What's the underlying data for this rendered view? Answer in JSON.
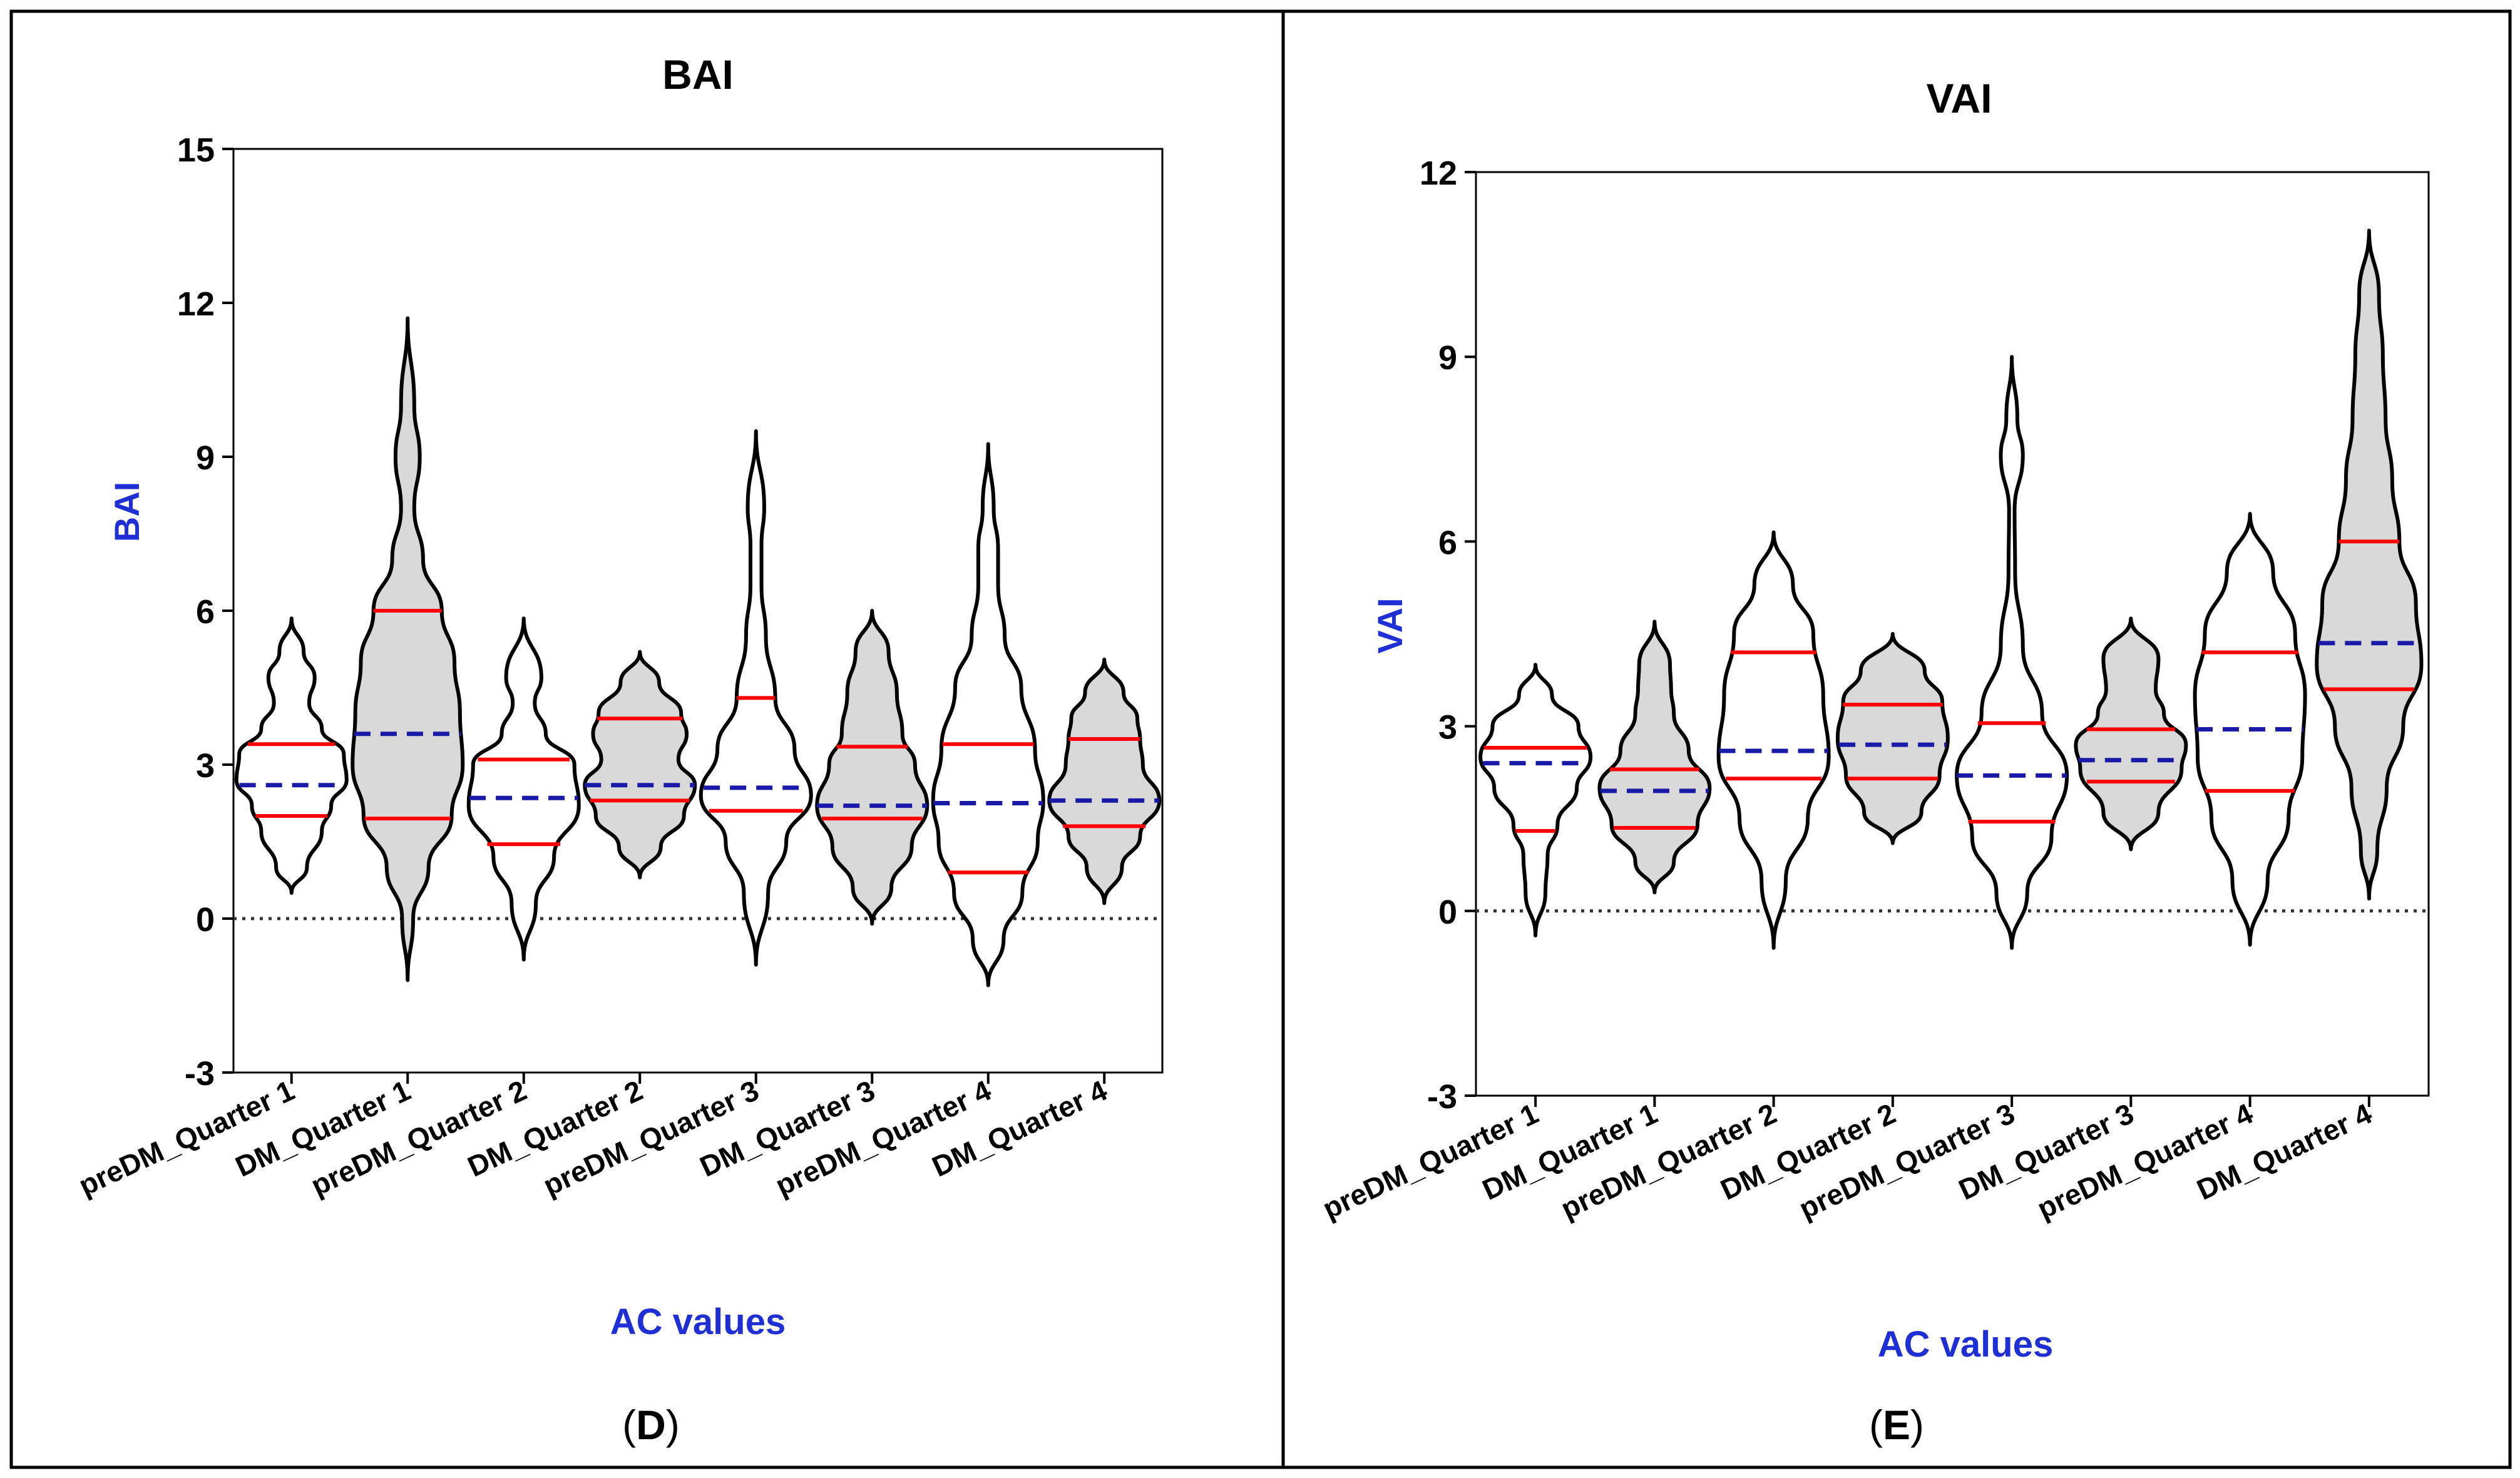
{
  "figure": {
    "panels": [
      {
        "label_letter": "D"
      },
      {
        "label_letter": "E"
      }
    ]
  },
  "colors": {
    "fill": "#d9d9d9",
    "outline": "#000000",
    "quartile": "#ff0000",
    "median": "#1a1aa8",
    "axis_label": "#1f2fd6",
    "zero_line": "#333333"
  },
  "chart_data": [
    {
      "type": "violin",
      "title": "BAI",
      "xlabel": "AC values",
      "ylabel": "BAI",
      "ylim": [
        -3,
        15
      ],
      "yticks": [
        -3,
        0,
        3,
        6,
        9,
        12,
        15
      ],
      "reference_line": 0,
      "categories": [
        "preDM_Quarter 1",
        "DM_Quarter 1",
        "preDM_Quarter 2",
        "DM_Quarter 2",
        "preDM_Quarter 3",
        "DM_Quarter 3",
        "preDM_Quarter 4",
        "DM_Quarter 4"
      ],
      "violins": [
        {
          "filled": false,
          "q1": 2.0,
          "median": 2.6,
          "q3": 3.4,
          "profile": [
            [
              0.5,
              0
            ],
            [
              1.0,
              0.28
            ],
            [
              1.7,
              0.55
            ],
            [
              2.2,
              0.72
            ],
            [
              2.7,
              1.0
            ],
            [
              3.2,
              0.95
            ],
            [
              3.7,
              0.55
            ],
            [
              4.2,
              0.32
            ],
            [
              4.7,
              0.42
            ],
            [
              5.2,
              0.22
            ],
            [
              5.85,
              0
            ]
          ]
        },
        {
          "filled": true,
          "q1": 1.95,
          "median": 3.6,
          "q3": 6.0,
          "profile": [
            [
              -1.2,
              0
            ],
            [
              0.0,
              0.1
            ],
            [
              1.0,
              0.38
            ],
            [
              2.0,
              0.8
            ],
            [
              3.0,
              1.0
            ],
            [
              4.0,
              0.95
            ],
            [
              5.0,
              0.85
            ],
            [
              6.0,
              0.62
            ],
            [
              7.0,
              0.28
            ],
            [
              8.0,
              0.12
            ],
            [
              9.0,
              0.22
            ],
            [
              10.0,
              0.12
            ],
            [
              11.7,
              0
            ]
          ]
        },
        {
          "filled": false,
          "q1": 1.45,
          "median": 2.35,
          "q3": 3.1,
          "profile": [
            [
              -0.8,
              0
            ],
            [
              0.3,
              0.22
            ],
            [
              1.2,
              0.55
            ],
            [
              2.2,
              1.0
            ],
            [
              3.0,
              0.92
            ],
            [
              3.6,
              0.4
            ],
            [
              4.2,
              0.2
            ],
            [
              4.7,
              0.32
            ],
            [
              5.85,
              0
            ]
          ]
        },
        {
          "filled": true,
          "q1": 2.3,
          "median": 2.6,
          "q3": 3.9,
          "profile": [
            [
              0.8,
              0
            ],
            [
              1.4,
              0.38
            ],
            [
              2.0,
              0.8
            ],
            [
              2.6,
              1.0
            ],
            [
              3.1,
              0.7
            ],
            [
              3.6,
              0.85
            ],
            [
              4.0,
              0.75
            ],
            [
              4.6,
              0.35
            ],
            [
              5.2,
              0
            ]
          ]
        },
        {
          "filled": false,
          "q1": 2.1,
          "median": 2.55,
          "q3": 4.3,
          "profile": [
            [
              -0.9,
              0
            ],
            [
              0.5,
              0.22
            ],
            [
              1.5,
              0.55
            ],
            [
              2.4,
              1.0
            ],
            [
              3.3,
              0.7
            ],
            [
              4.3,
              0.35
            ],
            [
              5.5,
              0.18
            ],
            [
              6.5,
              0.1
            ],
            [
              7.3,
              0.1
            ],
            [
              8.0,
              0.15
            ],
            [
              9.5,
              0
            ]
          ]
        },
        {
          "filled": true,
          "q1": 1.95,
          "median": 2.2,
          "q3": 3.35,
          "profile": [
            [
              -0.1,
              0
            ],
            [
              0.6,
              0.35
            ],
            [
              1.4,
              0.72
            ],
            [
              2.2,
              1.0
            ],
            [
              3.0,
              0.78
            ],
            [
              3.6,
              0.55
            ],
            [
              4.4,
              0.45
            ],
            [
              5.2,
              0.3
            ],
            [
              6.0,
              0
            ]
          ]
        },
        {
          "filled": false,
          "q1": 0.9,
          "median": 2.25,
          "q3": 3.4,
          "profile": [
            [
              -1.3,
              0
            ],
            [
              -0.4,
              0.28
            ],
            [
              0.5,
              0.62
            ],
            [
              1.5,
              0.9
            ],
            [
              2.3,
              1.0
            ],
            [
              3.3,
              0.85
            ],
            [
              4.5,
              0.6
            ],
            [
              5.5,
              0.3
            ],
            [
              6.5,
              0.18
            ],
            [
              7.2,
              0.18
            ],
            [
              8.0,
              0.1
            ],
            [
              9.25,
              0
            ]
          ]
        },
        {
          "filled": true,
          "q1": 1.8,
          "median": 2.3,
          "q3": 3.5,
          "profile": [
            [
              0.3,
              0
            ],
            [
              1.0,
              0.32
            ],
            [
              1.6,
              0.65
            ],
            [
              2.3,
              1.0
            ],
            [
              3.0,
              0.7
            ],
            [
              3.5,
              0.65
            ],
            [
              3.9,
              0.6
            ],
            [
              4.4,
              0.35
            ],
            [
              5.05,
              0
            ]
          ]
        }
      ]
    },
    {
      "type": "violin",
      "title": "VAI",
      "xlabel": "AC values",
      "ylabel": "VAI",
      "ylim": [
        -3,
        12
      ],
      "yticks": [
        -3,
        0,
        3,
        6,
        9,
        12
      ],
      "reference_line": 0,
      "categories": [
        "preDM_Quarter 1",
        "DM_Quarter 1",
        "preDM_Quarter 2",
        "DM_Quarter 2",
        "preDM_Quarter 3",
        "DM_Quarter 3",
        "preDM_Quarter 4",
        "DM_Quarter 4"
      ],
      "violins": [
        {
          "filled": false,
          "q1": 1.3,
          "median": 2.4,
          "q3": 2.65,
          "profile": [
            [
              -0.4,
              0
            ],
            [
              0.3,
              0.18
            ],
            [
              0.9,
              0.22
            ],
            [
              1.4,
              0.4
            ],
            [
              2.0,
              0.75
            ],
            [
              2.5,
              1.0
            ],
            [
              3.0,
              0.78
            ],
            [
              3.5,
              0.3
            ],
            [
              4.0,
              0
            ]
          ]
        },
        {
          "filled": true,
          "q1": 1.35,
          "median": 1.95,
          "q3": 2.3,
          "profile": [
            [
              0.3,
              0
            ],
            [
              0.8,
              0.35
            ],
            [
              1.4,
              0.78
            ],
            [
              2.0,
              1.0
            ],
            [
              2.6,
              0.62
            ],
            [
              3.2,
              0.35
            ],
            [
              3.6,
              0.3
            ],
            [
              4.0,
              0.28
            ],
            [
              4.7,
              0
            ]
          ]
        },
        {
          "filled": false,
          "q1": 2.15,
          "median": 2.6,
          "q3": 4.2,
          "profile": [
            [
              -0.6,
              0
            ],
            [
              0.5,
              0.22
            ],
            [
              1.5,
              0.62
            ],
            [
              2.5,
              1.0
            ],
            [
              3.5,
              0.9
            ],
            [
              4.5,
              0.72
            ],
            [
              5.3,
              0.35
            ],
            [
              6.15,
              0
            ]
          ]
        },
        {
          "filled": true,
          "q1": 2.15,
          "median": 2.7,
          "q3": 3.35,
          "profile": [
            [
              1.1,
              0
            ],
            [
              1.6,
              0.52
            ],
            [
              2.2,
              0.85
            ],
            [
              2.8,
              1.0
            ],
            [
              3.4,
              0.9
            ],
            [
              3.9,
              0.58
            ],
            [
              4.5,
              0
            ]
          ]
        },
        {
          "filled": false,
          "q1": 1.45,
          "median": 2.2,
          "q3": 3.05,
          "profile": [
            [
              -0.6,
              0
            ],
            [
              0.3,
              0.28
            ],
            [
              1.2,
              0.72
            ],
            [
              2.2,
              1.0
            ],
            [
              3.2,
              0.55
            ],
            [
              4.3,
              0.2
            ],
            [
              5.5,
              0.06
            ],
            [
              6.5,
              0.05
            ],
            [
              7.4,
              0.2
            ],
            [
              8.0,
              0.1
            ],
            [
              9.0,
              0
            ]
          ]
        },
        {
          "filled": true,
          "q1": 2.1,
          "median": 2.45,
          "q3": 2.95,
          "profile": [
            [
              1.0,
              0
            ],
            [
              1.6,
              0.5
            ],
            [
              2.3,
              0.92
            ],
            [
              2.7,
              1.0
            ],
            [
              3.2,
              0.6
            ],
            [
              3.6,
              0.45
            ],
            [
              4.1,
              0.5
            ],
            [
              4.75,
              0
            ]
          ]
        },
        {
          "filled": false,
          "q1": 1.95,
          "median": 2.95,
          "q3": 4.2,
          "profile": [
            [
              -0.55,
              0
            ],
            [
              0.5,
              0.32
            ],
            [
              1.5,
              0.7
            ],
            [
              2.5,
              0.95
            ],
            [
              3.5,
              1.0
            ],
            [
              4.5,
              0.82
            ],
            [
              5.5,
              0.42
            ],
            [
              6.45,
              0
            ]
          ]
        },
        {
          "filled": true,
          "q1": 3.6,
          "median": 4.35,
          "q3": 6.0,
          "profile": [
            [
              0.2,
              0
            ],
            [
              1.0,
              0.15
            ],
            [
              2.0,
              0.32
            ],
            [
              3.0,
              0.62
            ],
            [
              4.0,
              0.95
            ],
            [
              5.0,
              0.85
            ],
            [
              6.0,
              0.55
            ],
            [
              7.0,
              0.42
            ],
            [
              8.0,
              0.3
            ],
            [
              9.0,
              0.25
            ],
            [
              10.0,
              0.18
            ],
            [
              11.05,
              0
            ]
          ]
        }
      ]
    }
  ]
}
